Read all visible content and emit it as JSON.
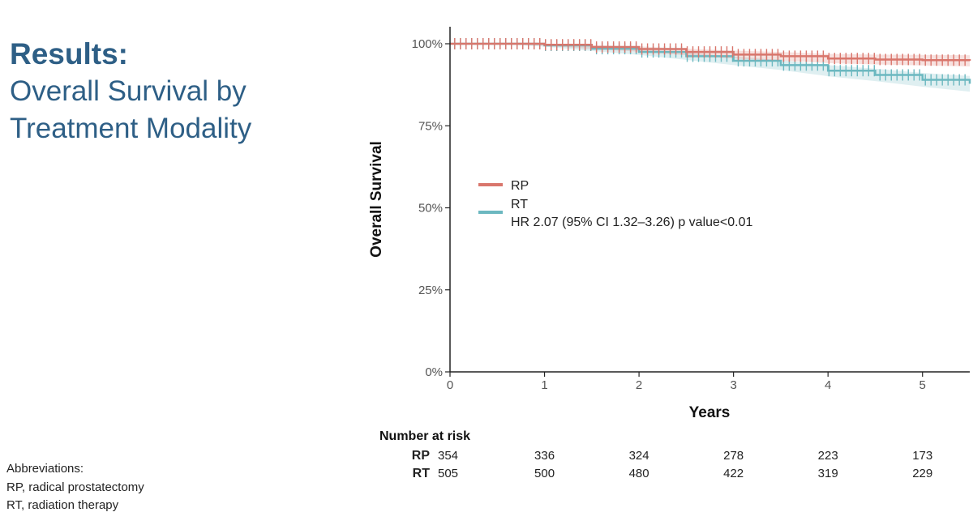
{
  "slide": {
    "title_line1": "Results:",
    "title_line2": "Overall Survival by",
    "title_line3": "Treatment Modality"
  },
  "abbreviations": {
    "heading": "Abbreviations:",
    "items": [
      "RP, radical prostatectomy",
      "RT, radiation therapy"
    ]
  },
  "chart_data": {
    "type": "line",
    "subtype": "kaplan-meier survival curve",
    "xlabel": "Years",
    "ylabel": "Overall Survival",
    "xlim": [
      0,
      5.5
    ],
    "ylim": [
      0,
      1
    ],
    "x_ticks": [
      0,
      1,
      2,
      3,
      4,
      5
    ],
    "y_ticks": [
      0,
      0.25,
      0.5,
      0.75,
      1
    ],
    "y_tick_labels": [
      "0%",
      "25%",
      "50%",
      "75%",
      "100%"
    ],
    "grid": false,
    "confidence_bands": true,
    "censor_marks": true,
    "legend_position": "middle-left",
    "annotation": "HR 2.07 (95% CI 1.32–3.26) p value<0.01",
    "series": [
      {
        "name": "RP",
        "color": "#d9766c",
        "x": [
          0,
          0.5,
          1.0,
          1.5,
          2.0,
          2.5,
          3.0,
          3.5,
          4.0,
          4.5,
          5.0,
          5.5
        ],
        "y": [
          1.0,
          1.0,
          0.997,
          0.99,
          0.984,
          0.975,
          0.967,
          0.962,
          0.955,
          0.952,
          0.95,
          0.948
        ],
        "ci_half_width": [
          0,
          0,
          0.003,
          0.006,
          0.008,
          0.01,
          0.012,
          0.013,
          0.014,
          0.015,
          0.016,
          0.017
        ]
      },
      {
        "name": "RT",
        "color": "#6cb8c0",
        "x": [
          0,
          0.5,
          1.0,
          1.5,
          2.0,
          2.5,
          3.0,
          3.5,
          4.0,
          4.5,
          5.0,
          5.5
        ],
        "y": [
          1.0,
          1.0,
          0.995,
          0.985,
          0.975,
          0.962,
          0.948,
          0.935,
          0.918,
          0.905,
          0.89,
          0.878
        ],
        "ci_half_width": [
          0,
          0,
          0.004,
          0.007,
          0.009,
          0.011,
          0.013,
          0.015,
          0.017,
          0.019,
          0.021,
          0.024
        ]
      }
    ],
    "risk_table": {
      "title": "Number at risk",
      "times": [
        0,
        1,
        2,
        3,
        4,
        5
      ],
      "rows": [
        {
          "name": "RP",
          "values": [
            354,
            336,
            324,
            278,
            223,
            173
          ]
        },
        {
          "name": "RT",
          "values": [
            505,
            500,
            480,
            422,
            319,
            229
          ]
        }
      ]
    }
  }
}
